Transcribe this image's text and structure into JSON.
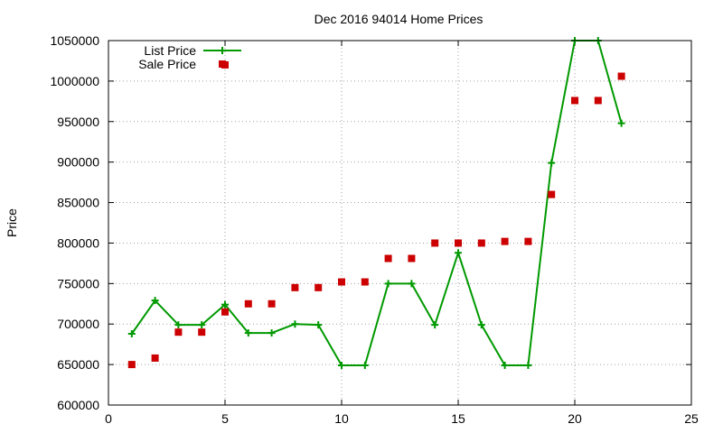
{
  "chart_data": {
    "type": "line",
    "title": "Dec 2016 94014 Home Prices",
    "xlabel": "",
    "ylabel": "Price",
    "xlim": [
      0,
      25
    ],
    "ylim": [
      600000,
      1050000
    ],
    "x_ticks": [
      "0",
      "5",
      "10",
      "15",
      "20",
      "25"
    ],
    "y_ticks": [
      "600000",
      "650000",
      "700000",
      "750000",
      "800000",
      "850000",
      "900000",
      "950000",
      "1000000",
      "1050000"
    ],
    "grid": true,
    "legend_position": "top-left",
    "series": [
      {
        "name": "List Price",
        "style": "line-with-plus-markers",
        "color": "#009900",
        "x": [
          1,
          2,
          3,
          4,
          5,
          6,
          7,
          8,
          9,
          10,
          11,
          12,
          13,
          14,
          15,
          16,
          17,
          18,
          19,
          20,
          21,
          22
        ],
        "y": [
          688000,
          729000,
          699000,
          699000,
          724000,
          689000,
          689000,
          700000,
          699000,
          649000,
          649000,
          750000,
          750000,
          699000,
          788000,
          699000,
          649000,
          649000,
          899000,
          1050000,
          1050000,
          948000
        ]
      },
      {
        "name": "Sale Price",
        "style": "square-markers",
        "color": "#cc0000",
        "x": [
          1,
          2,
          3,
          4,
          5,
          5,
          6,
          7,
          8,
          9,
          10,
          11,
          12,
          13,
          14,
          15,
          16,
          17,
          18,
          19,
          20,
          21,
          22
        ],
        "y": [
          650000,
          658000,
          690000,
          690000,
          1020000,
          715000,
          725000,
          725000,
          745000,
          745000,
          752000,
          752000,
          781000,
          781000,
          800000,
          800000,
          800000,
          802000,
          802000,
          860000,
          976000,
          976000,
          1006000
        ]
      }
    ]
  }
}
